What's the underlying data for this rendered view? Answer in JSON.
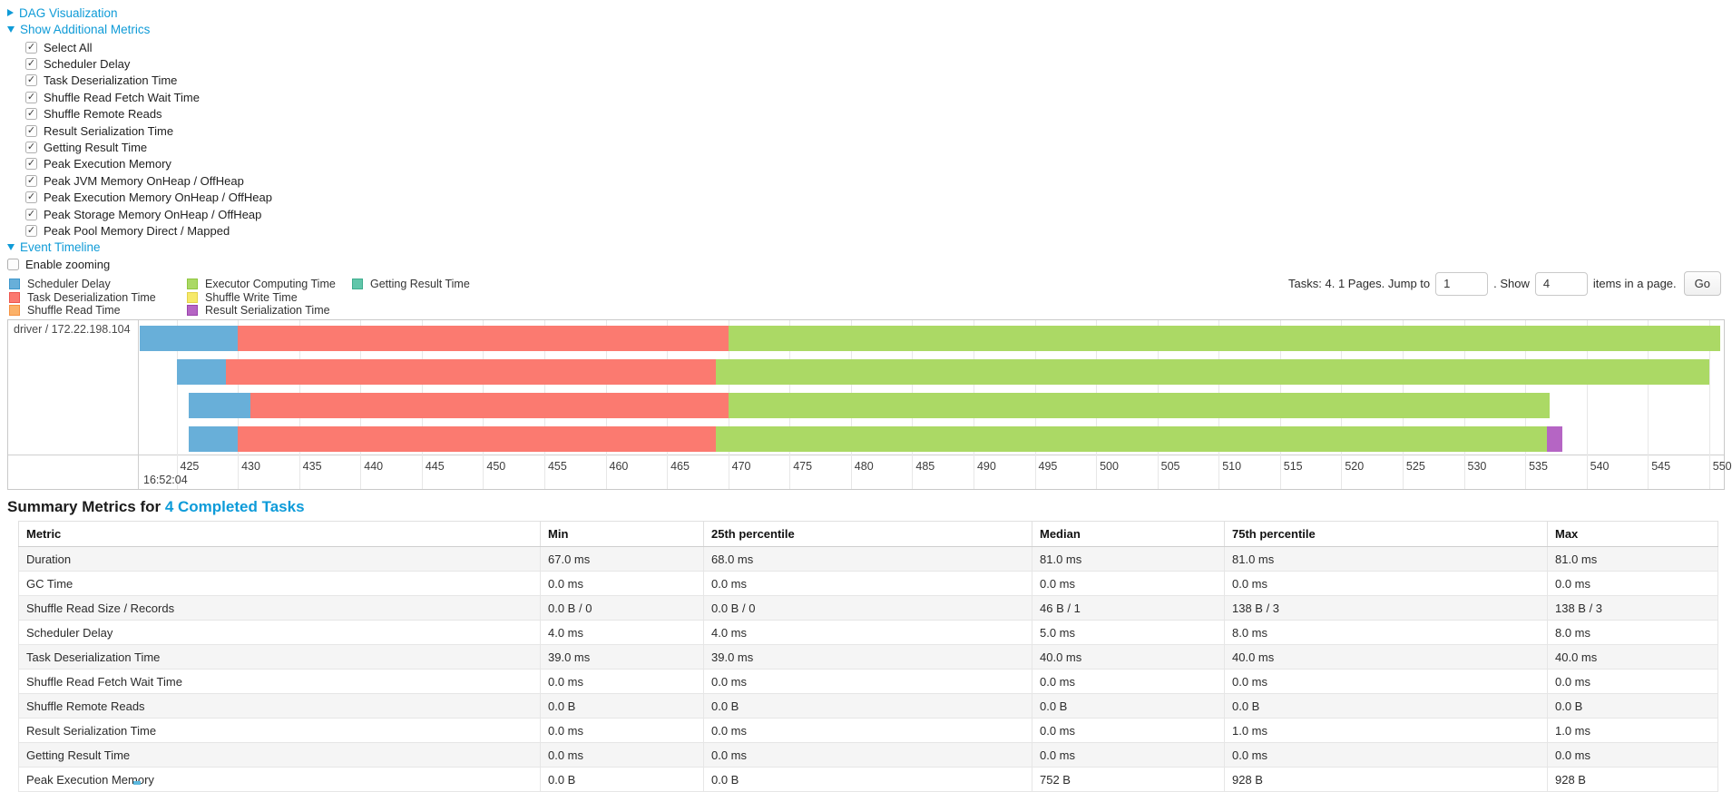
{
  "colors": {
    "link": "#0f9bd7",
    "bars": {
      "scheduler_delay": {
        "fill": "#68AFD9",
        "border": "#3D97CC"
      },
      "task_deserialization": {
        "fill": "#FB7A70",
        "border": "#ED564E"
      },
      "shuffle_read": {
        "fill": "#FBB169",
        "border": "#F59140"
      },
      "executor_computing": {
        "fill": "#ABD965",
        "border": "#8FC63F"
      },
      "shuffle_write": {
        "fill": "#F6E969",
        "border": "#E3D24A"
      },
      "result_serialization": {
        "fill": "#B565C4",
        "border": "#9A43AC"
      },
      "getting_result": {
        "fill": "#61C6AA",
        "border": "#3FAD8E"
      }
    }
  },
  "sections": {
    "dag": {
      "label": "DAG Visualization",
      "collapsed": true
    },
    "metrics": {
      "label": "Show Additional Metrics",
      "collapsed": false
    },
    "timeline": {
      "label": "Event Timeline",
      "collapsed": false
    }
  },
  "metrics_checkboxes": [
    {
      "label": "Select All",
      "checked": true
    },
    {
      "label": "Scheduler Delay",
      "checked": true
    },
    {
      "label": "Task Deserialization Time",
      "checked": true
    },
    {
      "label": "Shuffle Read Fetch Wait Time",
      "checked": true
    },
    {
      "label": "Shuffle Remote Reads",
      "checked": true
    },
    {
      "label": "Result Serialization Time",
      "checked": true
    },
    {
      "label": "Getting Result Time",
      "checked": true
    },
    {
      "label": "Peak Execution Memory",
      "checked": true
    },
    {
      "label": "Peak JVM Memory OnHeap / OffHeap",
      "checked": true
    },
    {
      "label": "Peak Execution Memory OnHeap / OffHeap",
      "checked": true
    },
    {
      "label": "Peak Storage Memory OnHeap / OffHeap",
      "checked": true
    },
    {
      "label": "Peak Pool Memory Direct / Mapped",
      "checked": true
    }
  ],
  "enable_zooming": {
    "label": "Enable zooming",
    "checked": false
  },
  "legend": {
    "columns": [
      [
        {
          "label": "Scheduler Delay",
          "key": "scheduler_delay"
        },
        {
          "label": "Task Deserialization Time",
          "key": "task_deserialization"
        },
        {
          "label": "Shuffle Read Time",
          "key": "shuffle_read"
        }
      ],
      [
        {
          "label": "Executor Computing Time",
          "key": "executor_computing"
        },
        {
          "label": "Shuffle Write Time",
          "key": "shuffle_write"
        },
        {
          "label": "Result Serialization Time",
          "key": "result_serialization"
        }
      ],
      [
        {
          "label": "Getting Result Time",
          "key": "getting_result"
        }
      ]
    ]
  },
  "pagination": {
    "tasks_text": "Tasks: 4. 1 Pages. Jump to",
    "jump_value": "1",
    "show_text": ". Show",
    "show_value": "4",
    "items_text": "items in a page.",
    "go_label": "Go"
  },
  "chart_data": {
    "type": "timeline-gantt",
    "row_label": "driver / 172.22.198.104",
    "x_axis": {
      "min": 422,
      "max": 551.2,
      "tick_start": 425,
      "tick_end": 550,
      "tick_step": 5,
      "major_label": "16:52:04"
    },
    "tasks": [
      {
        "segments": [
          {
            "key": "scheduler_delay",
            "start": 422,
            "end": 430
          },
          {
            "key": "task_deserialization",
            "start": 430,
            "end": 470
          },
          {
            "key": "executor_computing",
            "start": 470,
            "end": 550.9
          }
        ]
      },
      {
        "segments": [
          {
            "key": "scheduler_delay",
            "start": 425,
            "end": 429
          },
          {
            "key": "task_deserialization",
            "start": 429,
            "end": 469
          },
          {
            "key": "executor_computing",
            "start": 469,
            "end": 550
          }
        ]
      },
      {
        "segments": [
          {
            "key": "scheduler_delay",
            "start": 426,
            "end": 431
          },
          {
            "key": "task_deserialization",
            "start": 431,
            "end": 470
          },
          {
            "key": "executor_computing",
            "start": 470,
            "end": 537
          }
        ]
      },
      {
        "segments": [
          {
            "key": "scheduler_delay",
            "start": 426,
            "end": 430
          },
          {
            "key": "task_deserialization",
            "start": 430,
            "end": 469
          },
          {
            "key": "executor_computing",
            "start": 469,
            "end": 536.8
          },
          {
            "key": "result_serialization",
            "start": 536.8,
            "end": 538
          }
        ]
      }
    ]
  },
  "summary": {
    "heading_prefix": "Summary Metrics for ",
    "heading_link": "4 Completed Tasks",
    "columns": [
      "Metric",
      "Min",
      "25th percentile",
      "Median",
      "75th percentile",
      "Max"
    ],
    "rows": [
      {
        "metric": "Duration",
        "values": [
          "67.0 ms",
          "68.0 ms",
          "81.0 ms",
          "81.0 ms",
          "81.0 ms"
        ]
      },
      {
        "metric": "GC Time",
        "values": [
          "0.0 ms",
          "0.0 ms",
          "0.0 ms",
          "0.0 ms",
          "0.0 ms"
        ]
      },
      {
        "metric": "Shuffle Read Size / Records",
        "values": [
          "0.0 B / 0",
          "0.0 B / 0",
          "46 B / 1",
          "138 B / 3",
          "138 B / 3"
        ]
      },
      {
        "metric": "Scheduler Delay",
        "values": [
          "4.0 ms",
          "4.0 ms",
          "5.0 ms",
          "8.0 ms",
          "8.0 ms"
        ]
      },
      {
        "metric": "Task Deserialization Time",
        "values": [
          "39.0 ms",
          "39.0 ms",
          "40.0 ms",
          "40.0 ms",
          "40.0 ms"
        ]
      },
      {
        "metric": "Shuffle Read Fetch Wait Time",
        "values": [
          "0.0 ms",
          "0.0 ms",
          "0.0 ms",
          "0.0 ms",
          "0.0 ms"
        ]
      },
      {
        "metric": "Shuffle Remote Reads",
        "values": [
          "0.0 B",
          "0.0 B",
          "0.0 B",
          "0.0 B",
          "0.0 B"
        ]
      },
      {
        "metric": "Result Serialization Time",
        "values": [
          "0.0 ms",
          "0.0 ms",
          "0.0 ms",
          "1.0 ms",
          "1.0 ms"
        ]
      },
      {
        "metric": "Getting Result Time",
        "values": [
          "0.0 ms",
          "0.0 ms",
          "0.0 ms",
          "0.0 ms",
          "0.0 ms"
        ]
      },
      {
        "metric": "Peak Execution Memory",
        "values": [
          "0.0 B",
          "0.0 B",
          "752 B",
          "928 B",
          "928 B"
        ]
      }
    ]
  }
}
